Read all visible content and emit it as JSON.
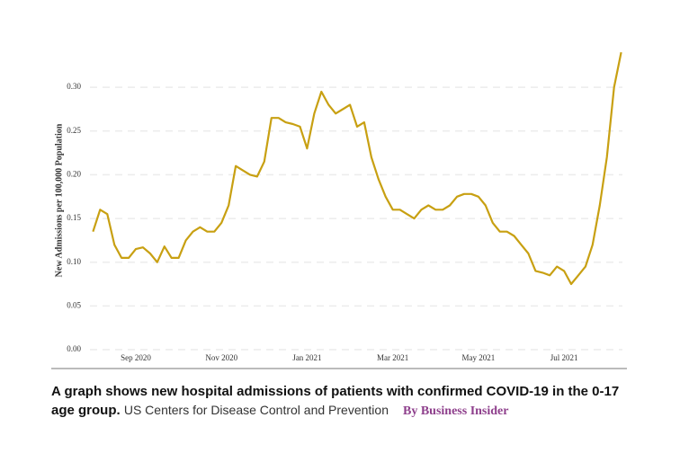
{
  "chart_data": {
    "type": "line",
    "ylabel": "New Admissions per 100,000 Population",
    "categories": [
      null,
      null,
      null,
      null,
      null,
      null,
      "Sep 2020",
      null,
      null,
      null,
      null,
      null,
      null,
      null,
      null,
      null,
      null,
      null,
      "Nov 2020",
      null,
      null,
      null,
      null,
      null,
      null,
      null,
      null,
      null,
      null,
      null,
      "Jan 2021",
      null,
      null,
      null,
      null,
      null,
      null,
      null,
      null,
      null,
      null,
      null,
      "Mar 2021",
      null,
      null,
      null,
      null,
      null,
      null,
      null,
      null,
      null,
      null,
      null,
      "May 2021",
      null,
      null,
      null,
      null,
      null,
      null,
      null,
      null,
      null,
      null,
      null,
      "Jul 2021",
      null,
      null,
      null,
      null,
      null,
      null,
      null,
      null
    ],
    "values": [
      0.135,
      0.16,
      0.155,
      0.12,
      0.105,
      0.105,
      0.115,
      0.117,
      0.11,
      0.1,
      0.118,
      0.105,
      0.105,
      0.125,
      0.135,
      0.14,
      0.135,
      0.135,
      0.145,
      0.165,
      0.21,
      0.205,
      0.2,
      0.198,
      0.215,
      0.265,
      0.265,
      0.26,
      0.258,
      0.255,
      0.23,
      0.27,
      0.295,
      0.28,
      0.27,
      0.275,
      0.28,
      0.255,
      0.26,
      0.22,
      0.195,
      0.175,
      0.16,
      0.16,
      0.155,
      0.15,
      0.16,
      0.165,
      0.16,
      0.16,
      0.165,
      0.175,
      0.178,
      0.178,
      0.175,
      0.165,
      0.145,
      0.135,
      0.135,
      0.13,
      0.12,
      0.11,
      0.09,
      0.088,
      0.085,
      0.095,
      0.09,
      0.075,
      0.085,
      0.095,
      0.12,
      0.165,
      0.22,
      0.3,
      0.34
    ],
    "color": "#c8a012",
    "ylim": [
      0,
      0.35
    ],
    "yticks": [
      {
        "value": 0,
        "label": "0.00"
      },
      {
        "value": 0.05,
        "label": "0.05"
      },
      {
        "value": 0.1,
        "label": "0.10"
      },
      {
        "value": 0.15,
        "label": "0.15"
      },
      {
        "value": 0.2,
        "label": "0.20"
      },
      {
        "value": 0.25,
        "label": "0.25"
      },
      {
        "value": 0.3,
        "label": "0.30"
      }
    ],
    "grid": true
  },
  "caption": {
    "text": "A graph shows new hospital admissions of patients with confirmed COVID-19 in the 0-17 age group.",
    "credit": "US Centers for Disease Control and Prevention",
    "byline": "By Business Insider"
  }
}
